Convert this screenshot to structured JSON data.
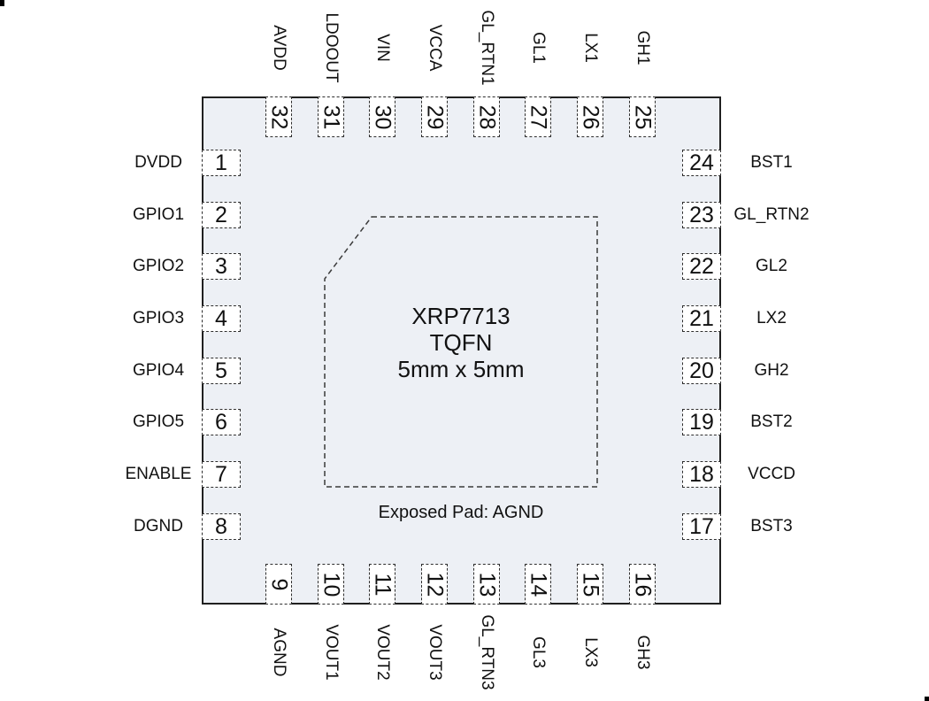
{
  "diagram": {
    "part_number": "XRP7713",
    "package_type": "TQFN",
    "package_size": "5mm x 5mm",
    "exposed_pad_note": "Exposed Pad: AGND"
  },
  "colors": {
    "chip_fill": "#edf0f5",
    "outline": "#202020",
    "pin_border": "#2e2e2e",
    "background": "#ffffff",
    "text": "#111111"
  },
  "pins": {
    "left": [
      {
        "number": "1",
        "label": "DVDD"
      },
      {
        "number": "2",
        "label": "GPIO1"
      },
      {
        "number": "3",
        "label": "GPIO2"
      },
      {
        "number": "4",
        "label": "GPIO3"
      },
      {
        "number": "5",
        "label": "GPIO4"
      },
      {
        "number": "6",
        "label": "GPIO5"
      },
      {
        "number": "7",
        "label": "ENABLE"
      },
      {
        "number": "8",
        "label": "DGND"
      }
    ],
    "right": [
      {
        "number": "24",
        "label": "BST1"
      },
      {
        "number": "23",
        "label": "GL_RTN2"
      },
      {
        "number": "22",
        "label": "GL2"
      },
      {
        "number": "21",
        "label": "LX2"
      },
      {
        "number": "20",
        "label": "GH2"
      },
      {
        "number": "19",
        "label": "BST2"
      },
      {
        "number": "18",
        "label": "VCCD"
      },
      {
        "number": "17",
        "label": "BST3"
      }
    ],
    "top": [
      {
        "number": "32",
        "label": "AVDD"
      },
      {
        "number": "31",
        "label": "LDOOUT"
      },
      {
        "number": "30",
        "label": "VIN"
      },
      {
        "number": "29",
        "label": "VCCA"
      },
      {
        "number": "28",
        "label": "GL_RTN1"
      },
      {
        "number": "27",
        "label": "GL1"
      },
      {
        "number": "26",
        "label": "LX1"
      },
      {
        "number": "25",
        "label": "GH1"
      }
    ],
    "bottom": [
      {
        "number": "9",
        "label": "AGND"
      },
      {
        "number": "10",
        "label": "VOUT1"
      },
      {
        "number": "11",
        "label": "VOUT2"
      },
      {
        "number": "12",
        "label": "VOUT3"
      },
      {
        "number": "13",
        "label": "GL_RTN3"
      },
      {
        "number": "14",
        "label": "GL3"
      },
      {
        "number": "15",
        "label": "LX3"
      },
      {
        "number": "16",
        "label": "GH3"
      }
    ]
  }
}
